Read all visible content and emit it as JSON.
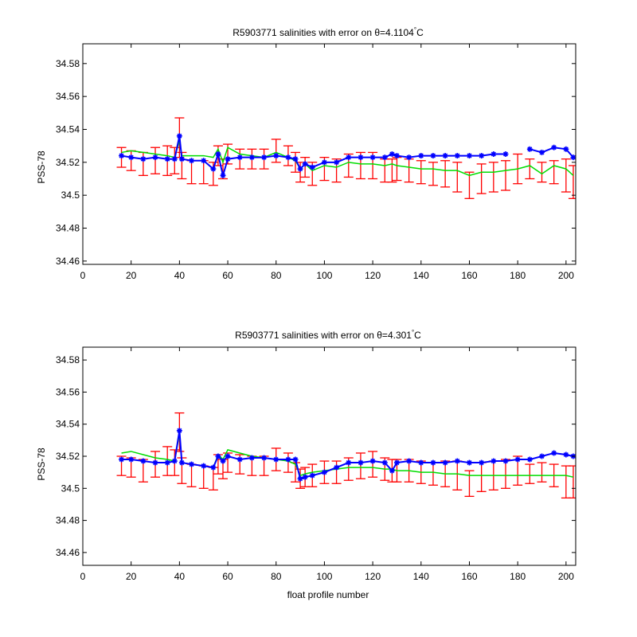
{
  "colors": {
    "errorbar": "#ff0000",
    "calibrated": "#00dd00",
    "raw": "#0000ff",
    "axis": "#000000"
  },
  "chart_data": [
    {
      "type": "line",
      "title": {
        "prefix": "R5903771 salinities with error on θ=",
        "value": "4.1104",
        "degree": "°",
        "unit": "C"
      },
      "xlabel": "",
      "ylabel": "PSS-78",
      "xlim": [
        0,
        204
      ],
      "ylim": [
        34.458,
        34.592
      ],
      "xticks": [
        "0",
        "20",
        "40",
        "60",
        "80",
        "100",
        "120",
        "140",
        "160",
        "180",
        "200"
      ],
      "yticks": [
        "34.46",
        "34.48",
        "34.5",
        "34.52",
        "34.54",
        "34.56",
        "34.58"
      ],
      "grid": false,
      "x": [
        16,
        20,
        25,
        30,
        35,
        38,
        40,
        41,
        45,
        50,
        54,
        56,
        58,
        60,
        65,
        70,
        75,
        80,
        85,
        88,
        90,
        92,
        95,
        100,
        105,
        110,
        115,
        120,
        125,
        128,
        130,
        135,
        140,
        145,
        150,
        155,
        160,
        165,
        170,
        175,
        180,
        185,
        190,
        195,
        200,
        203
      ],
      "series": [
        {
          "role": "raw",
          "marker": "*",
          "values": [
            34.524,
            34.523,
            34.522,
            34.523,
            34.522,
            34.522,
            34.536,
            34.522,
            34.521,
            34.521,
            34.516,
            34.525,
            34.512,
            34.522,
            34.523,
            34.523,
            34.523,
            34.524,
            34.523,
            34.522,
            34.516,
            34.519,
            34.517,
            34.52,
            34.52,
            34.523,
            34.523,
            34.523,
            34.523,
            34.525,
            34.524,
            34.523,
            34.524,
            34.524,
            34.524,
            34.524,
            34.524,
            34.524,
            34.525,
            34.525,
            null,
            34.528,
            34.526,
            34.529,
            34.528,
            34.523
          ]
        },
        {
          "role": "calibrated",
          "values": [
            34.526,
            34.527,
            34.526,
            34.525,
            34.524,
            34.523,
            34.533,
            34.524,
            34.524,
            34.524,
            34.523,
            34.528,
            34.52,
            34.529,
            34.525,
            34.524,
            34.523,
            34.526,
            34.523,
            34.521,
            34.516,
            34.519,
            34.515,
            34.518,
            34.517,
            34.52,
            34.519,
            34.519,
            34.518,
            34.519,
            34.518,
            34.517,
            34.516,
            34.516,
            34.515,
            34.515,
            34.512,
            34.514,
            34.514,
            34.515,
            34.516,
            34.518,
            34.513,
            34.518,
            34.516,
            34.512
          ]
        }
      ],
      "errorbars": {
        "center": [
          34.523,
          34.521,
          34.519,
          34.521,
          34.521,
          34.521,
          34.535,
          34.518,
          34.514,
          34.514,
          34.513,
          34.524,
          34.516,
          34.525,
          34.522,
          34.522,
          34.522,
          34.527,
          34.524,
          34.52,
          34.514,
          34.517,
          34.513,
          34.516,
          34.515,
          34.518,
          34.518,
          34.518,
          34.515,
          34.515,
          34.516,
          34.515,
          34.514,
          34.513,
          34.513,
          34.511,
          34.506,
          34.51,
          34.511,
          34.512,
          34.516,
          34.516,
          34.514,
          34.514,
          34.512,
          34.508
        ],
        "halfwidth": [
          0.006,
          0.006,
          0.007,
          0.008,
          0.009,
          0.008,
          0.012,
          0.008,
          0.007,
          0.007,
          0.007,
          0.006,
          0.006,
          0.006,
          0.006,
          0.006,
          0.006,
          0.007,
          0.006,
          0.006,
          0.006,
          0.006,
          0.007,
          0.007,
          0.007,
          0.007,
          0.008,
          0.008,
          0.007,
          0.007,
          0.007,
          0.007,
          0.007,
          0.007,
          0.008,
          0.009,
          0.008,
          0.009,
          0.009,
          0.009,
          0.009,
          0.006,
          0.006,
          0.007,
          0.01,
          0.01
        ]
      }
    },
    {
      "type": "line",
      "title": {
        "prefix": "R5903771 salinities with error on θ=",
        "value": "4.301",
        "degree": "°",
        "unit": "C"
      },
      "xlabel": "float profile number",
      "ylabel": "PSS-78",
      "xlim": [
        0,
        204
      ],
      "ylim": [
        34.452,
        34.588
      ],
      "xticks": [
        "0",
        "20",
        "40",
        "60",
        "80",
        "100",
        "120",
        "140",
        "160",
        "180",
        "200"
      ],
      "yticks": [
        "34.46",
        "34.48",
        "34.5",
        "34.52",
        "34.54",
        "34.56",
        "34.58"
      ],
      "grid": false,
      "x": [
        16,
        20,
        25,
        30,
        35,
        38,
        40,
        41,
        45,
        50,
        54,
        56,
        58,
        60,
        65,
        70,
        75,
        80,
        85,
        88,
        90,
        92,
        95,
        100,
        105,
        110,
        115,
        120,
        125,
        128,
        130,
        135,
        140,
        145,
        150,
        155,
        160,
        165,
        170,
        175,
        180,
        185,
        190,
        195,
        200,
        203
      ],
      "series": [
        {
          "role": "raw",
          "marker": "*",
          "values": [
            34.518,
            34.518,
            34.517,
            34.516,
            34.516,
            34.517,
            34.536,
            34.516,
            34.515,
            34.514,
            34.513,
            34.52,
            34.517,
            34.52,
            34.518,
            34.519,
            34.519,
            34.518,
            34.518,
            34.518,
            34.506,
            34.507,
            34.508,
            34.51,
            34.513,
            34.516,
            34.516,
            34.517,
            34.516,
            34.511,
            34.516,
            34.517,
            34.516,
            34.516,
            34.516,
            34.517,
            34.516,
            34.516,
            34.517,
            34.517,
            34.518,
            34.518,
            34.52,
            34.522,
            34.521,
            34.52
          ]
        },
        {
          "role": "calibrated",
          "values": [
            34.522,
            34.523,
            34.521,
            34.519,
            34.518,
            34.517,
            34.534,
            34.516,
            34.515,
            34.514,
            34.513,
            34.521,
            34.518,
            34.524,
            34.522,
            34.52,
            34.519,
            34.518,
            34.517,
            34.515,
            34.508,
            34.509,
            34.51,
            34.511,
            34.512,
            34.513,
            34.513,
            34.513,
            34.512,
            34.512,
            34.511,
            34.511,
            34.51,
            34.51,
            34.509,
            34.509,
            34.508,
            34.508,
            34.508,
            34.508,
            34.508,
            34.508,
            34.508,
            34.508,
            34.508,
            34.507
          ]
        }
      ],
      "errorbars": {
        "center": [
          34.514,
          34.513,
          34.511,
          34.515,
          34.517,
          34.516,
          34.535,
          34.511,
          34.508,
          34.507,
          34.506,
          34.515,
          34.512,
          34.516,
          34.515,
          34.514,
          34.514,
          34.518,
          34.516,
          34.51,
          34.506,
          34.507,
          34.508,
          34.51,
          34.51,
          34.512,
          34.514,
          34.515,
          34.512,
          34.511,
          34.511,
          34.511,
          34.51,
          34.509,
          34.509,
          34.508,
          34.503,
          34.507,
          34.508,
          34.509,
          34.511,
          34.509,
          34.51,
          34.508,
          34.504,
          34.504
        ]
      }
    }
  ]
}
